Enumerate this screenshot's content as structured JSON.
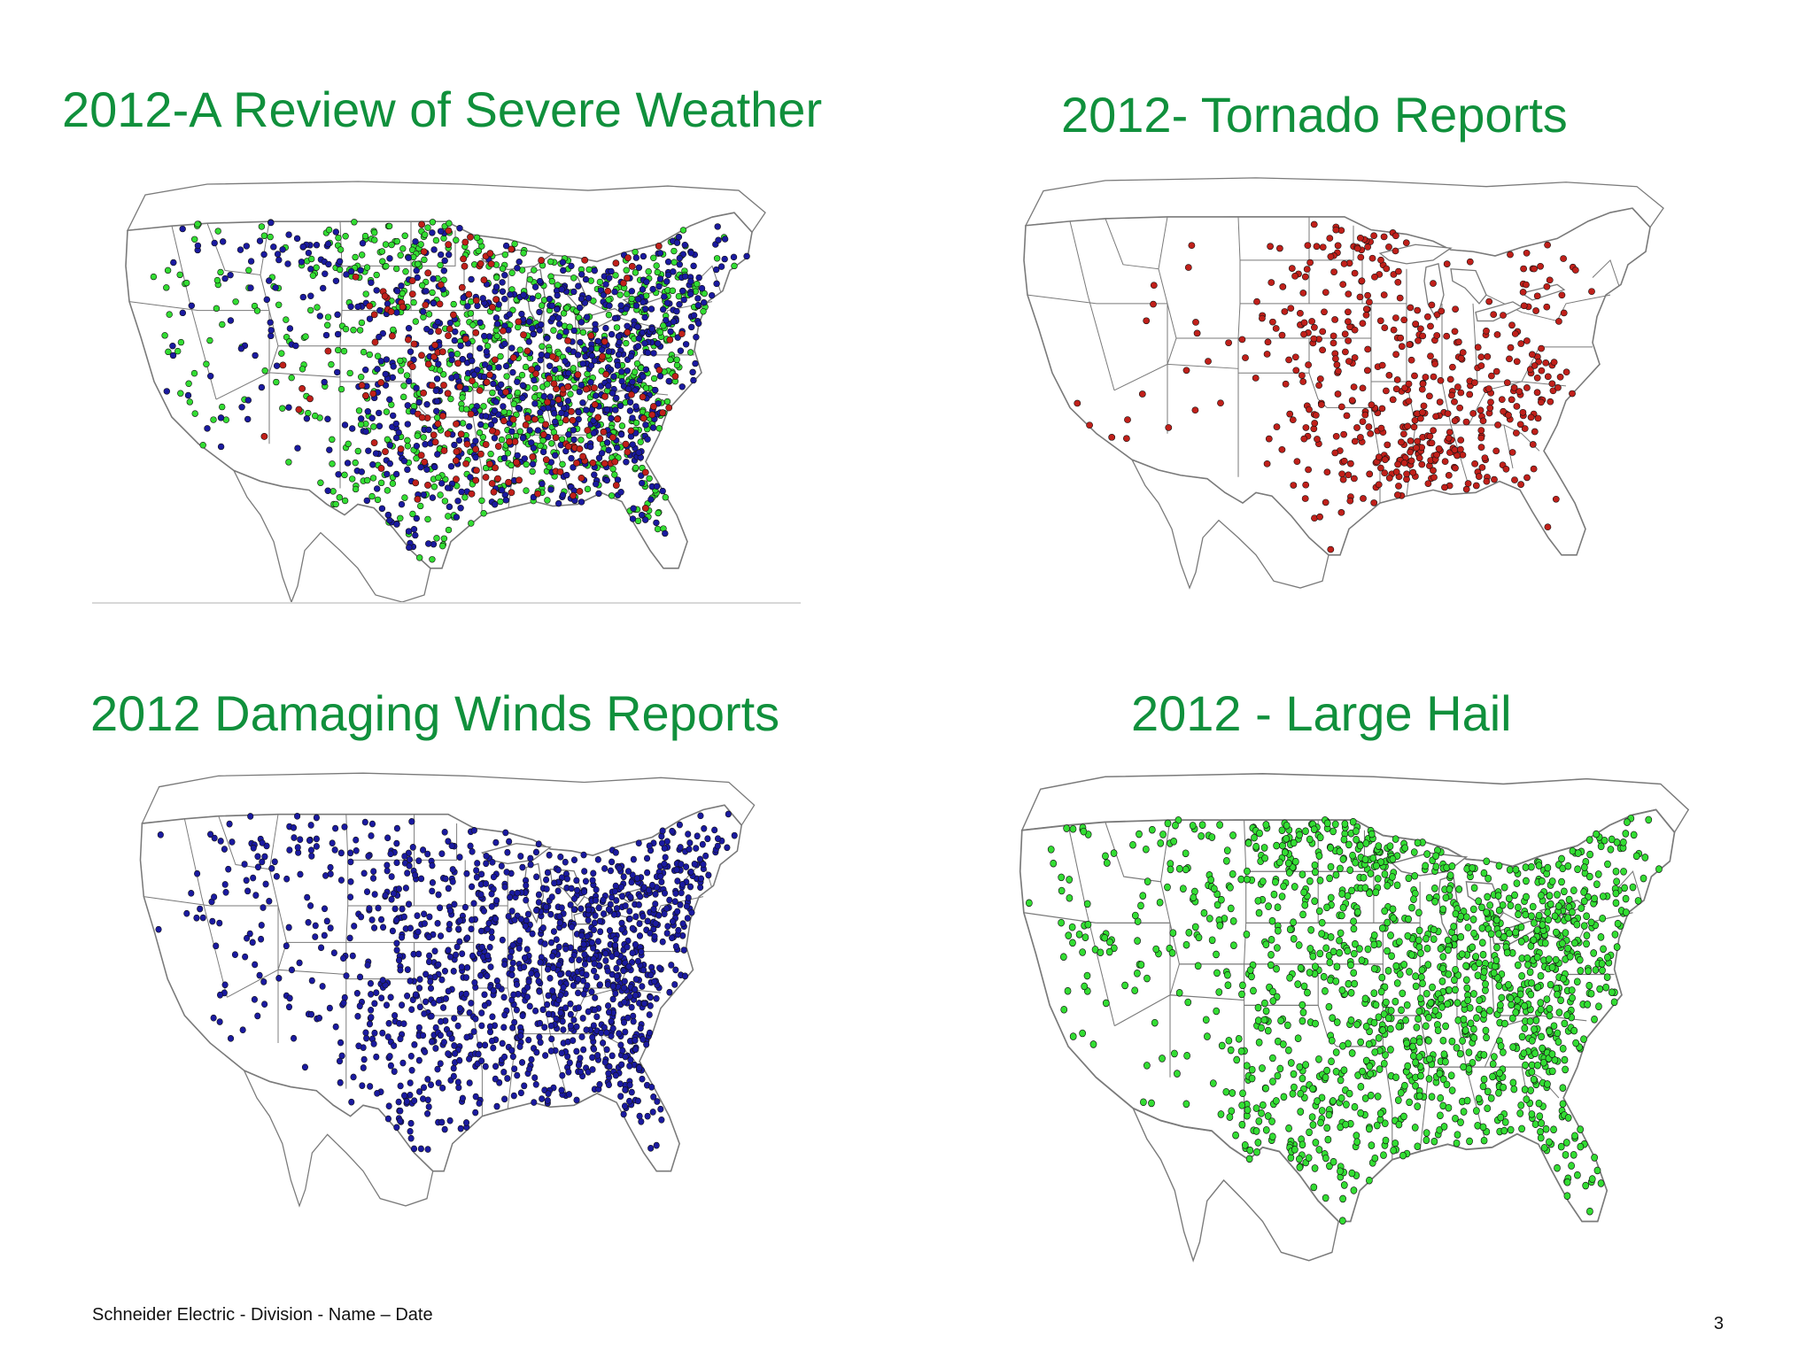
{
  "slide": {
    "title_overview": "2012-A Review of Severe Weather",
    "title_tornado": "2012- Tornado Reports",
    "title_wind": "2012 Damaging Winds Reports",
    "title_hail": "2012 - Large Hail",
    "footer": "Schneider Electric  - Division  - Name – Date",
    "page_number": "3"
  },
  "colors": {
    "title": "#10903c",
    "tornado_dot": "#c0201a",
    "wind_dot": "#1a1aa0",
    "hail_dot": "#33dd33",
    "map_lines": "#7a7a7a"
  },
  "maps": [
    {
      "id": "overview",
      "layers": [
        "hail",
        "wind",
        "tornado"
      ]
    },
    {
      "id": "tornado",
      "layers": [
        "tornado"
      ]
    },
    {
      "id": "wind",
      "layers": [
        "wind"
      ]
    },
    {
      "id": "hail",
      "layers": [
        "hail"
      ]
    }
  ]
}
